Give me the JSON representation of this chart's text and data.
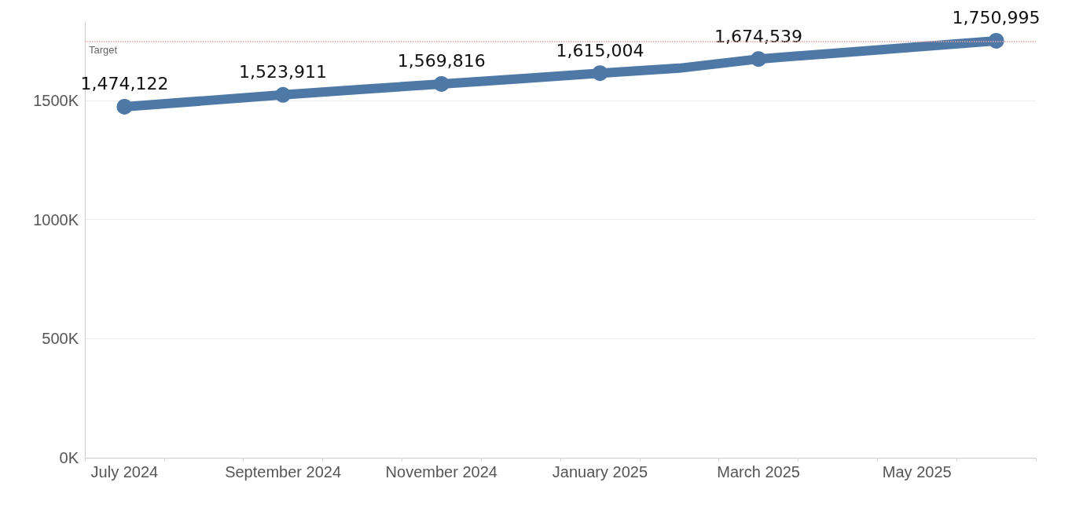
{
  "chart_data": {
    "type": "line",
    "categories": [
      "July 2024",
      null,
      "September 2024",
      null,
      "November 2024",
      null,
      "January 2025",
      null,
      "March 2025",
      null,
      "May 2025",
      null
    ],
    "series": [
      {
        "color": "#4e79a7",
        "values": [
          1474122,
          1499000,
          1523911,
          1547000,
          1569816,
          1592000,
          1615004,
          1636000,
          1674539,
          1700000,
          1725000,
          1750995
        ],
        "value_labels": [
          "1,474,122",
          null,
          "1,523,911",
          null,
          "1,569,816",
          null,
          "1,615,004",
          null,
          "1,674,539",
          null,
          null,
          "1,750,995"
        ]
      }
    ],
    "ylim": [
      0,
      1830000
    ],
    "yticks": [
      {
        "value": 0,
        "label": "0K"
      },
      {
        "value": 500000,
        "label": "500K"
      },
      {
        "value": 1000000,
        "label": "1000K"
      },
      {
        "value": 1500000,
        "label": "1500K"
      }
    ],
    "ref_lines": [
      {
        "axis": "y",
        "value": 1750000,
        "label": "Target",
        "color": "#e8a0a0",
        "line_style": "dotted"
      }
    ],
    "grid": "y",
    "marker": "circle",
    "line_style": "solid"
  }
}
